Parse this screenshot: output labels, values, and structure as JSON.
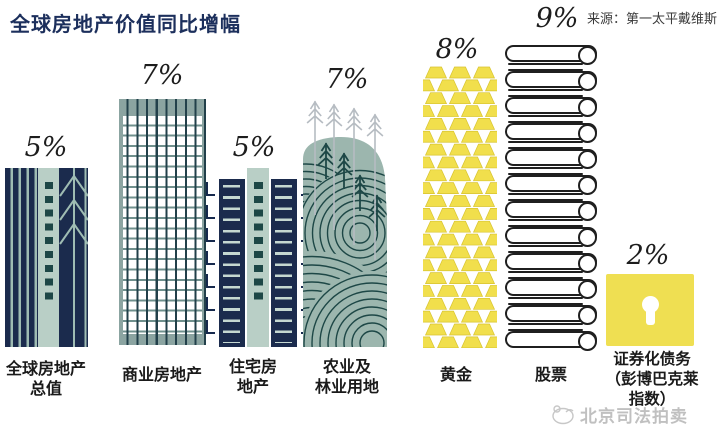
{
  "title": "全球房地产价值同比增幅",
  "source": "来源：第一太平戴维斯",
  "watermark": {
    "text": "北京司法拍卖"
  },
  "chart_data": {
    "type": "bar",
    "title": "全球房地产价值同比增幅",
    "unit": "%",
    "categories": [
      "全球房地产总值",
      "商业房地产",
      "住宅房地产",
      "农业及林业用地",
      "黄金",
      "股票",
      "证券化债务（彭博巴克莱指数）"
    ],
    "values": [
      5,
      7,
      5,
      7,
      8,
      9,
      2
    ],
    "value_labels": [
      "5%",
      "7%",
      "5%",
      "7%",
      "8%",
      "9%",
      "2%"
    ],
    "source": "来源：第一太平戴维斯",
    "legend": "none",
    "grid": false,
    "ylim": [
      0,
      10
    ]
  },
  "columns": [
    {
      "pct": "5%",
      "icon": "navy-buildings-icon",
      "label_lines": [
        "全球房地产",
        "总值"
      ]
    },
    {
      "pct": "7%",
      "icon": "office-tower-icon",
      "label_lines": [
        "商业房地产"
      ]
    },
    {
      "pct": "5%",
      "icon": "residential-tower-icon",
      "label_lines": [
        "住宅房",
        "地产"
      ]
    },
    {
      "pct": "7%",
      "icon": "farmland-forest-icon",
      "label_lines": [
        "农业及",
        "林业用地"
      ]
    },
    {
      "pct": "8%",
      "icon": "gold-bars-icon",
      "label_lines": [
        "黄金"
      ]
    },
    {
      "pct": "9%",
      "icon": "stock-certificates-icon",
      "label_lines": [
        "股票"
      ]
    },
    {
      "pct": "2%",
      "icon": "padlock-icon",
      "label_lines": [
        "证券化债务",
        "（彭博巴克莱",
        "指数）"
      ]
    }
  ],
  "colors": {
    "title_navy": "#1c2f5c",
    "building_navy": "#1b2b4d",
    "sage_light": "#b9cfc6",
    "teal_frame": "#8ba4a1",
    "field_green": "#9cb6ae",
    "line_dark_teal": "#1d4746",
    "gold_yellow": "#f1df4c",
    "lock_yellow": "#efdf52",
    "ink": "#1f1f1f"
  }
}
